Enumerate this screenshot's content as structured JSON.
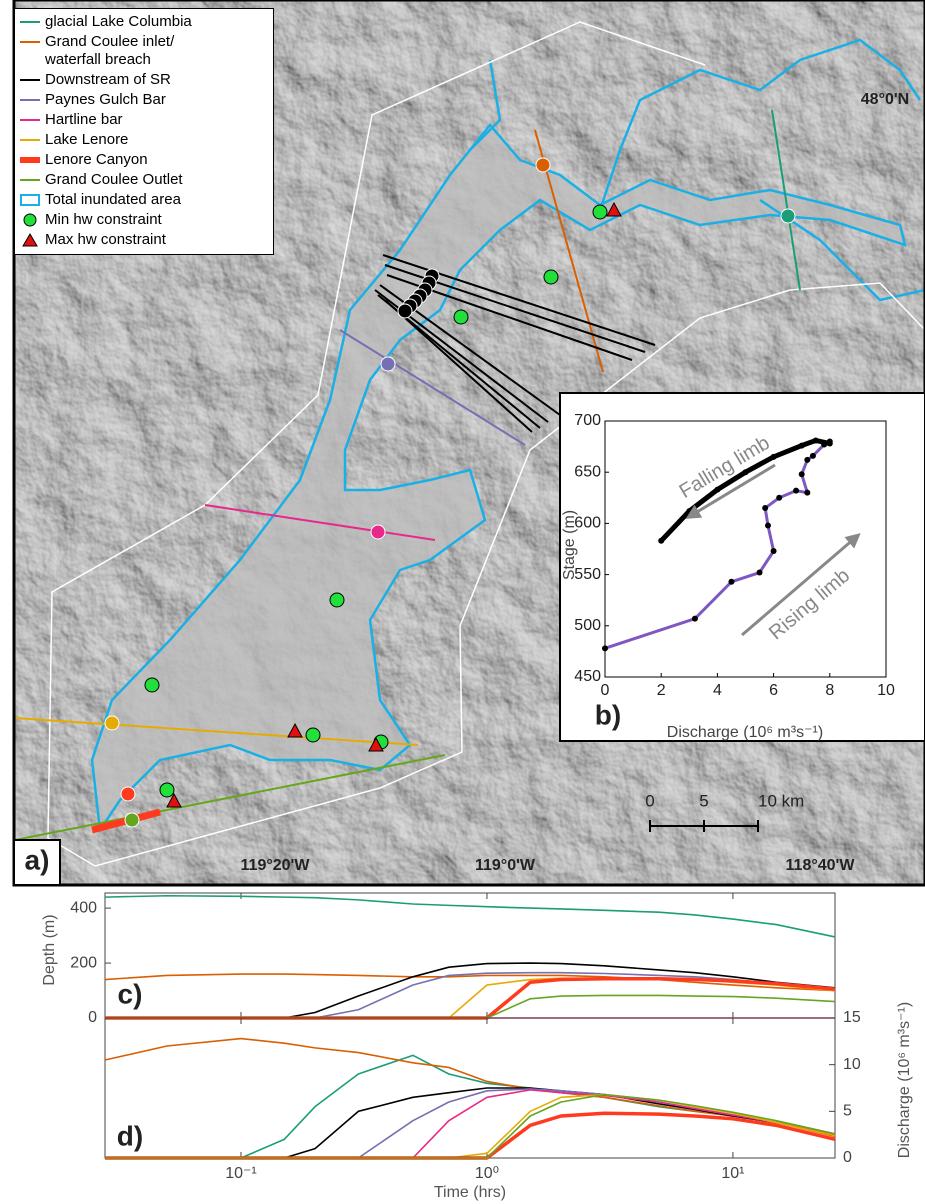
{
  "chart_data": [
    {
      "type": "map",
      "panel_label": "a)",
      "graticule": [
        "48°0'N",
        "119°20'W",
        "119°0'W",
        "118°40'W"
      ],
      "legend": [
        {
          "name": "glacial Lake Columbia",
          "color": "#1b9e77",
          "marker": "line"
        },
        {
          "name": "Grand Coulee inlet/\n   waterfall breach",
          "color": "#d95f02",
          "marker": "line"
        },
        {
          "name": "Downstream of SR",
          "color": "#000000",
          "marker": "line"
        },
        {
          "name": "Paynes Gulch Bar",
          "color": "#7570b3",
          "marker": "line"
        },
        {
          "name": "Hartline bar",
          "color": "#e7298a",
          "marker": "line"
        },
        {
          "name": "Lake Lenore",
          "color": "#e6ab02",
          "marker": "line"
        },
        {
          "name": "Lenore Canyon",
          "color": "#ff3b1f",
          "marker": "thick-line"
        },
        {
          "name": "Grand Coulee Outlet",
          "color": "#66a61e",
          "marker": "line"
        },
        {
          "name": "Total inundated area",
          "color": "#1ab0e6",
          "marker": "box"
        },
        {
          "name": "Min hw constraint",
          "color": "#22e03a",
          "marker": "circle"
        },
        {
          "name": "Max hw constraint",
          "color": "#e01010",
          "marker": "triangle"
        }
      ],
      "scale_bar": {
        "ticks": [
          0,
          5,
          {
            "value": 10,
            "label": "10 km"
          }
        ]
      }
    },
    {
      "type": "line",
      "panel_label": "b)",
      "xlabel": "Discharge (10⁶ m³s⁻¹)",
      "ylabel": "Stage (m)",
      "annotations": [
        "Falling limb",
        "Rising limb"
      ],
      "xlim": [
        0,
        10
      ],
      "xticks": [
        0,
        2,
        4,
        6,
        8,
        10
      ],
      "ylim": [
        450,
        700
      ],
      "yticks": [
        450,
        500,
        550,
        600,
        650,
        700
      ],
      "series": [
        {
          "color": "#7e57c2",
          "x": [
            0,
            3.2,
            4.5,
            5.5,
            6,
            5.8,
            5.7,
            6.2,
            6.8,
            7.2,
            7,
            7.2,
            7.4,
            7.8,
            8
          ],
          "values": [
            478,
            507,
            543,
            552,
            573,
            598,
            615,
            625,
            632,
            630,
            648,
            662,
            666,
            677,
            680
          ]
        },
        {
          "color": "#000000",
          "x": [
            8,
            7.5,
            7,
            6,
            5,
            4,
            3,
            2
          ],
          "values": [
            678,
            681,
            676,
            665,
            650,
            633,
            612,
            583
          ]
        }
      ]
    },
    {
      "type": "line",
      "panel_label": "c)",
      "ylabel": "Depth (m)",
      "log_x": true,
      "x": [
        0.028,
        0.05,
        0.1,
        0.15,
        0.2,
        0.3,
        0.5,
        0.7,
        1,
        1.5,
        2,
        3,
        5,
        7,
        10,
        15,
        26
      ],
      "xlim": [
        0.028,
        26
      ],
      "xticks": [
        {
          "value": 0.1,
          "label": "10⁻¹"
        },
        {
          "value": 1,
          "label": "10⁰"
        },
        {
          "value": 10,
          "label": "10¹"
        }
      ],
      "ylim": [
        0,
        455
      ],
      "yticks": [
        0,
        200,
        400
      ],
      "series": [
        {
          "color": "#1b9e77",
          "values": [
            440,
            445,
            443,
            440,
            438,
            430,
            415,
            410,
            405,
            400,
            397,
            392,
            385,
            375,
            360,
            340,
            295
          ]
        },
        {
          "color": "#d95f02",
          "values": [
            140,
            155,
            160,
            160,
            158,
            155,
            150,
            150,
            155,
            155,
            155,
            150,
            140,
            130,
            120,
            110,
            100
          ]
        },
        {
          "color": "#000000",
          "values": [
            0,
            0,
            0,
            0,
            20,
            80,
            150,
            185,
            198,
            200,
            198,
            190,
            175,
            165,
            150,
            130,
            110
          ]
        },
        {
          "color": "#7570b3",
          "values": [
            0,
            0,
            0,
            0,
            0,
            30,
            120,
            155,
            163,
            165,
            165,
            162,
            155,
            150,
            140,
            125,
            100
          ]
        },
        {
          "color": "#e7298a",
          "values": [
            0,
            0,
            0,
            0,
            0,
            0,
            0,
            0,
            0,
            0,
            0,
            0,
            0,
            0,
            0,
            0,
            0
          ]
        },
        {
          "color": "#e6ab02",
          "values": [
            0,
            0,
            0,
            0,
            0,
            0,
            0,
            0,
            120,
            140,
            145,
            145,
            145,
            140,
            130,
            120,
            100
          ]
        },
        {
          "color": "#ff3b1f",
          "linewidth": 3.5,
          "values": [
            0,
            0,
            0,
            0,
            0,
            0,
            0,
            0,
            0,
            130,
            140,
            143,
            143,
            140,
            135,
            125,
            105
          ]
        },
        {
          "color": "#66a61e",
          "values": [
            0,
            0,
            0,
            0,
            0,
            0,
            0,
            0,
            0,
            70,
            80,
            82,
            82,
            80,
            78,
            72,
            60
          ]
        }
      ]
    },
    {
      "type": "line",
      "panel_label": "d)",
      "xlabel": "Time (hrs)",
      "y2label": "Discharge (10⁶ m³s⁻¹)",
      "log_x": true,
      "x": [
        0.028,
        0.05,
        0.1,
        0.15,
        0.2,
        0.3,
        0.5,
        0.7,
        1,
        1.5,
        2,
        3,
        5,
        7,
        10,
        15,
        26
      ],
      "xlim": [
        0.028,
        26
      ],
      "xticks": [
        {
          "value": 0.1,
          "label": "10⁻¹"
        },
        {
          "value": 1,
          "label": "10⁰"
        },
        {
          "value": 10,
          "label": "10¹"
        }
      ],
      "y2lim": [
        0,
        15
      ],
      "y2ticks": [
        0,
        5,
        10,
        15
      ],
      "series": [
        {
          "color": "#1b9e77",
          "axis": "y2",
          "values": [
            0,
            0,
            0,
            2,
            5.5,
            9,
            11,
            9,
            8,
            7.5,
            7,
            6.5,
            5.5,
            5,
            4.5,
            3.8,
            2.5
          ]
        },
        {
          "color": "#d95f02",
          "axis": "y2",
          "values": [
            10.5,
            12,
            12.8,
            12.3,
            11.8,
            11.3,
            10.2,
            9.7,
            8.2,
            7.4,
            7,
            6.5,
            5.6,
            5,
            4.5,
            3.8,
            2.3
          ]
        },
        {
          "color": "#000000",
          "axis": "y2",
          "values": [
            0,
            0,
            0,
            0,
            1,
            5,
            6.5,
            7,
            7.5,
            7.5,
            7.2,
            6.8,
            5.8,
            5.2,
            4.5,
            3.8,
            2.5
          ]
        },
        {
          "color": "#7570b3",
          "axis": "y2",
          "values": [
            0,
            0,
            0,
            0,
            0,
            0,
            4,
            6,
            7.2,
            7.4,
            7.2,
            6.8,
            6,
            5.3,
            4.6,
            3.8,
            2.5
          ]
        },
        {
          "color": "#e7298a",
          "axis": "y2",
          "values": [
            0,
            0,
            0,
            0,
            0,
            0,
            0,
            4,
            6.5,
            7.3,
            7,
            6.7,
            6,
            5.3,
            4.6,
            3.8,
            2.5
          ]
        },
        {
          "color": "#e6ab02",
          "axis": "y2",
          "values": [
            0,
            0,
            0,
            0,
            0,
            0,
            0,
            0,
            0.5,
            5,
            6.5,
            6.8,
            6.2,
            5.5,
            4.8,
            3.8,
            2.4
          ]
        },
        {
          "color": "#ff3b1f",
          "axis": "y2",
          "linewidth": 3.5,
          "values": [
            0,
            0,
            0,
            0,
            0,
            0,
            0,
            0,
            0,
            3.5,
            4.5,
            4.8,
            4.7,
            4.5,
            4.2,
            3.5,
            2
          ]
        },
        {
          "color": "#66a61e",
          "axis": "y2",
          "values": [
            0,
            0,
            0,
            0,
            0,
            0,
            0,
            0,
            0,
            4.5,
            6,
            6.8,
            6.2,
            5.6,
            4.9,
            4,
            2.6
          ]
        }
      ]
    }
  ]
}
